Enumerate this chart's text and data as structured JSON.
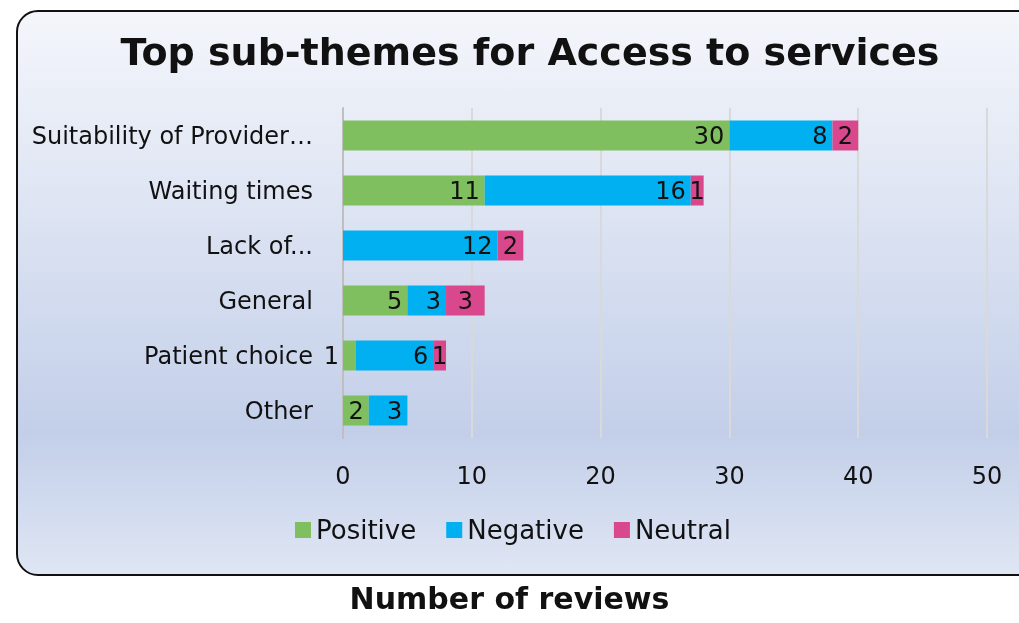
{
  "chart_data": {
    "type": "bar",
    "title": "Top sub-themes for Access to services",
    "xlabel": "Number of reviews",
    "orientation": "horizontal",
    "stacked": true,
    "categories": [
      "Suitability of Provider…",
      "Waiting times",
      "Lack of...",
      "General",
      "Patient choice",
      "Other"
    ],
    "series": [
      {
        "name": "Positive",
        "color": "#7fbf5f",
        "values": [
          30,
          11,
          null,
          5,
          1,
          2
        ]
      },
      {
        "name": "Negative",
        "color": "#00b0f0",
        "values": [
          8,
          16,
          12,
          3,
          6,
          3
        ]
      },
      {
        "name": "Neutral",
        "color": "#d9478c",
        "values": [
          2,
          1,
          2,
          3,
          1,
          null
        ]
      }
    ],
    "xlim": [
      0,
      50
    ],
    "xticks": [
      0,
      10,
      20,
      30,
      40,
      50
    ],
    "grid": "x",
    "legend": "bottom",
    "data_labels": true
  }
}
